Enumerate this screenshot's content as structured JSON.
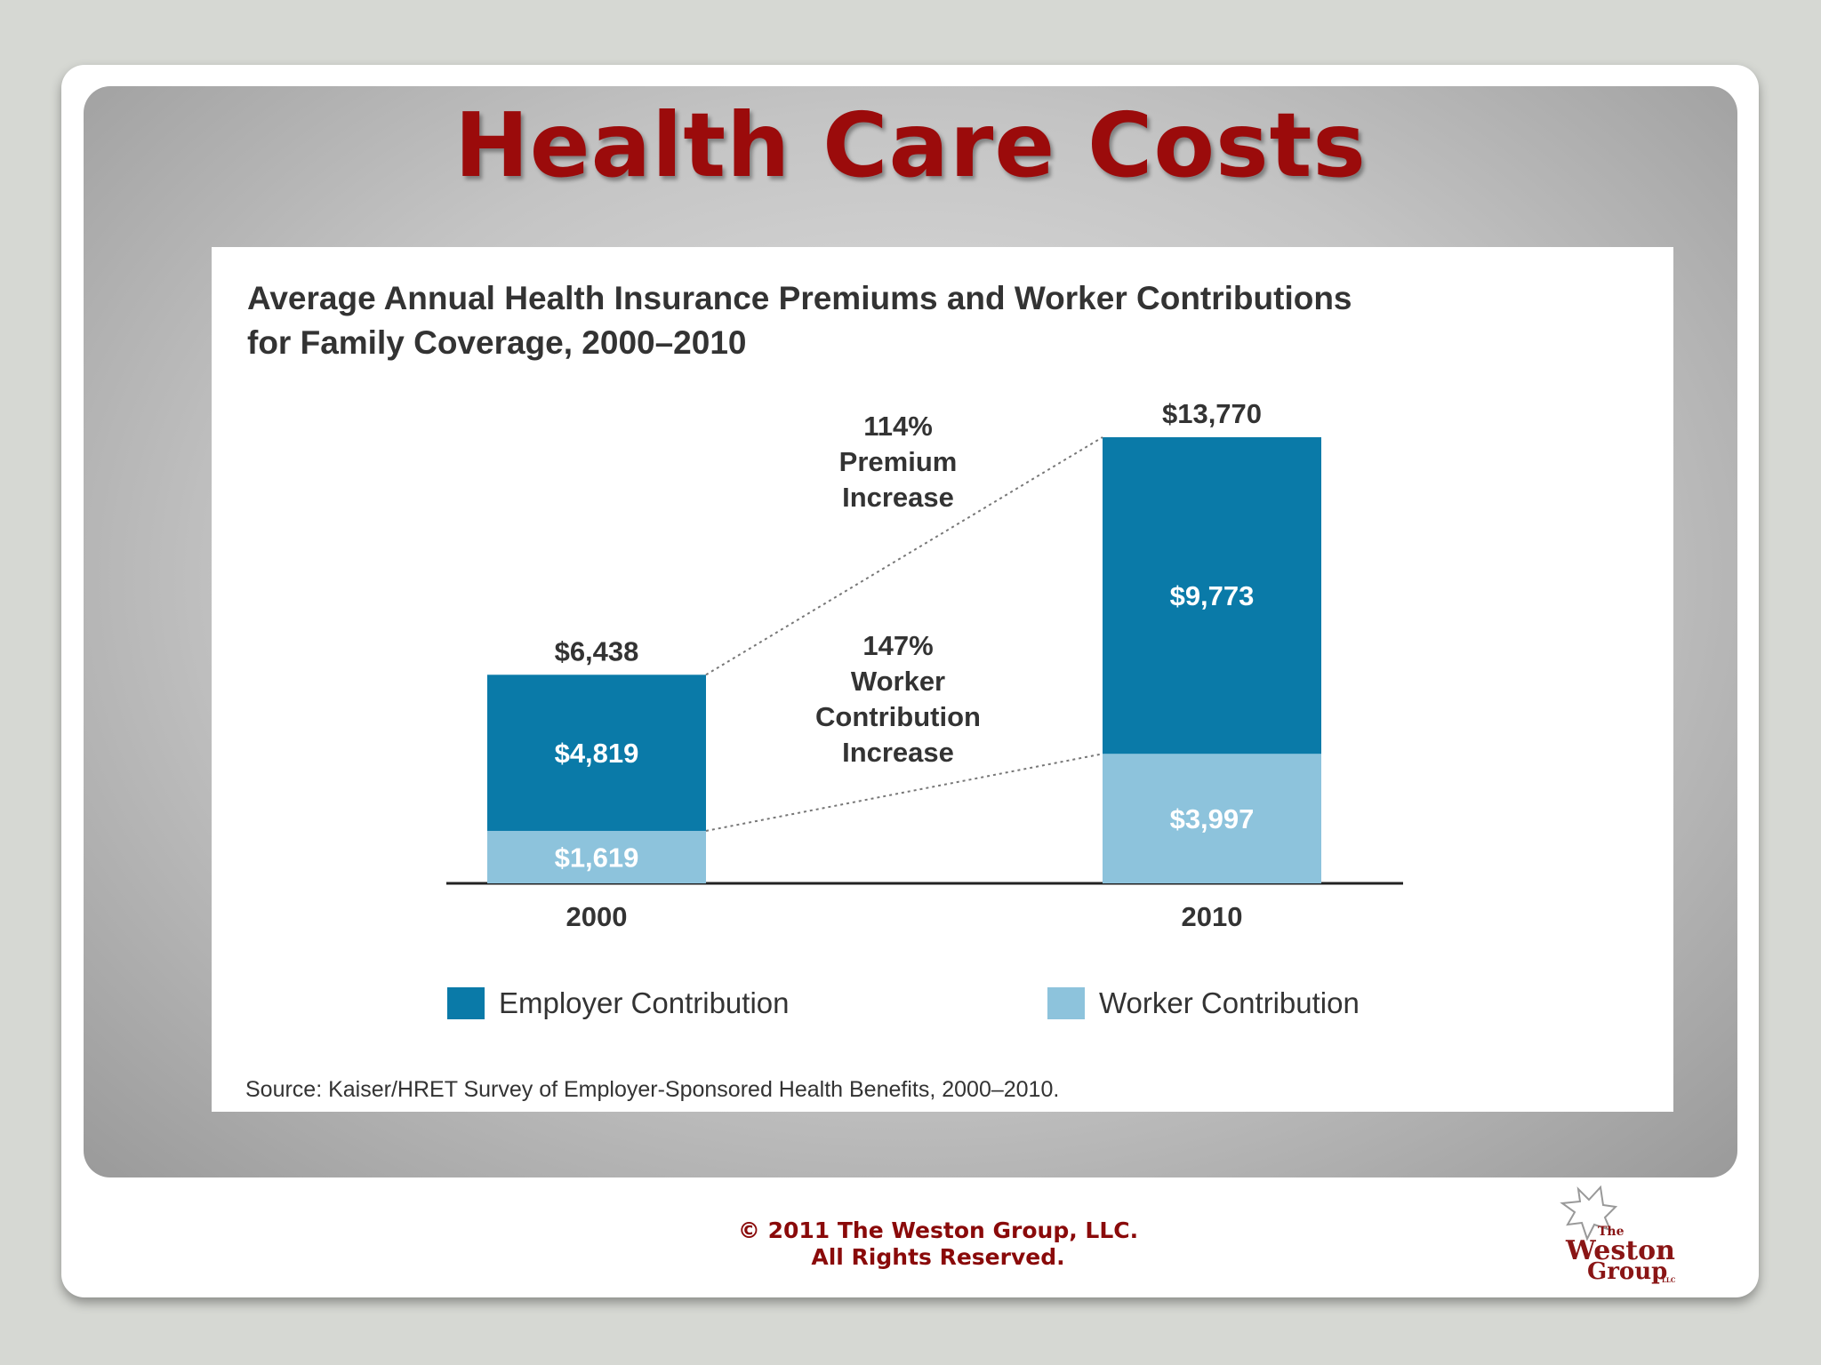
{
  "slide": {
    "title": "Health Care Costs",
    "footer_line1": "© 2011 The Weston Group, LLC.",
    "footer_line2": "All Rights Reserved.",
    "logo": {
      "the": "The",
      "name_line1": "Weston",
      "name_line2": "Group",
      "suffix": "LLC"
    }
  },
  "colors": {
    "title": "#9b0b0b",
    "employer": "#0a7aa8",
    "worker": "#8dc3dc"
  },
  "chart_data": {
    "type": "bar",
    "stacked": true,
    "title_line1": "Average Annual Health Insurance Premiums and Worker Contributions",
    "title_line2": "for Family Coverage, 2000–2010",
    "categories": [
      "2000",
      "2010"
    ],
    "series": [
      {
        "name": "Worker Contribution",
        "values": [
          1619,
          3997
        ],
        "labels": [
          "$1,619",
          "$3,997"
        ]
      },
      {
        "name": "Employer Contribution",
        "values": [
          4819,
          9773
        ],
        "labels": [
          "$4,819",
          "$9,773"
        ]
      }
    ],
    "totals": [
      6438,
      13770
    ],
    "total_labels": [
      "$6,438",
      "$13,770"
    ],
    "ylim": [
      0,
      13770
    ],
    "legend": [
      "Employer Contribution",
      "Worker Contribution"
    ],
    "legend_position": "bottom",
    "annotations": {
      "premium": [
        "114%",
        "Premium",
        "Increase"
      ],
      "worker": [
        "147%",
        "Worker",
        "Contribution",
        "Increase"
      ]
    },
    "source": "Source:  Kaiser/HRET Survey of Employer-Sponsored Health Benefits, 2000–2010."
  }
}
